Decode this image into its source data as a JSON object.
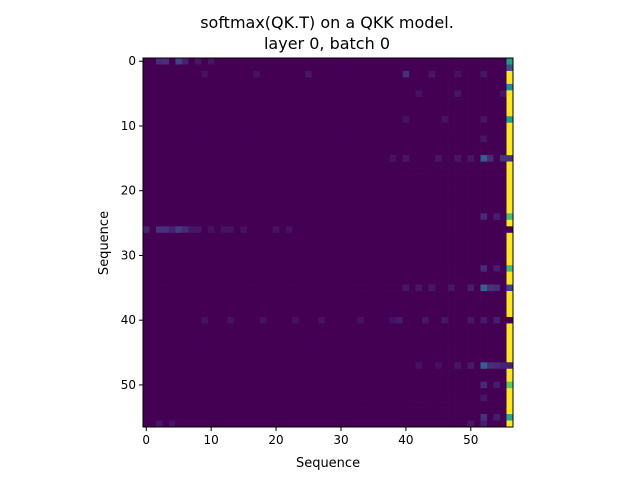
{
  "chart_data": {
    "type": "heatmap",
    "title_lines": [
      "softmax(QK.T) on a QKK model.",
      "layer 0, batch 0"
    ],
    "xlabel": "Sequence",
    "ylabel": "Sequence",
    "n_rows": 57,
    "n_cols": 57,
    "xlim": [
      -0.5,
      56.5
    ],
    "ylim": [
      56.5,
      -0.5
    ],
    "x_ticks": [
      0,
      10,
      20,
      30,
      40,
      50
    ],
    "y_ticks": [
      0,
      10,
      20,
      30,
      40,
      50
    ],
    "colormap": "viridis",
    "value_range": [
      0,
      1
    ],
    "background_value": 0.0,
    "dominant_column": {
      "col": 56,
      "value": 1.0,
      "low_rows": [
        {
          "row": 0,
          "value": 0.55
        },
        {
          "row": 1,
          "value": 0.25
        },
        {
          "row": 4,
          "value": 0.5
        },
        {
          "row": 9,
          "value": 0.55
        },
        {
          "row": 15,
          "value": 0.15
        },
        {
          "row": 24,
          "value": 0.7
        },
        {
          "row": 26,
          "value": 0.0
        },
        {
          "row": 32,
          "value": 0.7
        },
        {
          "row": 35,
          "value": 0.2
        },
        {
          "row": 40,
          "value": 0.0
        },
        {
          "row": 47,
          "value": 0.1
        },
        {
          "row": 50,
          "value": 0.75
        },
        {
          "row": 55,
          "value": 0.6
        }
      ]
    },
    "notable_cells": [
      {
        "row": 0,
        "col": 2,
        "value": 0.12
      },
      {
        "row": 0,
        "col": 3,
        "value": 0.14
      },
      {
        "row": 0,
        "col": 5,
        "value": 0.2
      },
      {
        "row": 0,
        "col": 6,
        "value": 0.1
      },
      {
        "row": 0,
        "col": 8,
        "value": 0.06
      },
      {
        "row": 0,
        "col": 10,
        "value": 0.06
      },
      {
        "row": 2,
        "col": 9,
        "value": 0.05
      },
      {
        "row": 2,
        "col": 17,
        "value": 0.05
      },
      {
        "row": 2,
        "col": 25,
        "value": 0.06
      },
      {
        "row": 2,
        "col": 40,
        "value": 0.14
      },
      {
        "row": 2,
        "col": 44,
        "value": 0.06
      },
      {
        "row": 2,
        "col": 48,
        "value": 0.05
      },
      {
        "row": 2,
        "col": 52,
        "value": 0.06
      },
      {
        "row": 5,
        "col": 42,
        "value": 0.05
      },
      {
        "row": 5,
        "col": 48,
        "value": 0.06
      },
      {
        "row": 5,
        "col": 55,
        "value": 0.06
      },
      {
        "row": 9,
        "col": 40,
        "value": 0.05
      },
      {
        "row": 9,
        "col": 46,
        "value": 0.05
      },
      {
        "row": 9,
        "col": 52,
        "value": 0.06
      },
      {
        "row": 12,
        "col": 52,
        "value": 0.06
      },
      {
        "row": 15,
        "col": 38,
        "value": 0.05
      },
      {
        "row": 15,
        "col": 40,
        "value": 0.06
      },
      {
        "row": 15,
        "col": 45,
        "value": 0.06
      },
      {
        "row": 15,
        "col": 48,
        "value": 0.06
      },
      {
        "row": 15,
        "col": 50,
        "value": 0.06
      },
      {
        "row": 15,
        "col": 52,
        "value": 0.3
      },
      {
        "row": 15,
        "col": 53,
        "value": 0.12
      },
      {
        "row": 15,
        "col": 55,
        "value": 0.15
      },
      {
        "row": 24,
        "col": 52,
        "value": 0.12
      },
      {
        "row": 24,
        "col": 54,
        "value": 0.08
      },
      {
        "row": 26,
        "col": 0,
        "value": 0.1
      },
      {
        "row": 26,
        "col": 2,
        "value": 0.14
      },
      {
        "row": 26,
        "col": 3,
        "value": 0.14
      },
      {
        "row": 26,
        "col": 4,
        "value": 0.1
      },
      {
        "row": 26,
        "col": 5,
        "value": 0.18
      },
      {
        "row": 26,
        "col": 6,
        "value": 0.12
      },
      {
        "row": 26,
        "col": 7,
        "value": 0.06
      },
      {
        "row": 26,
        "col": 8,
        "value": 0.06
      },
      {
        "row": 26,
        "col": 10,
        "value": 0.05
      },
      {
        "row": 26,
        "col": 12,
        "value": 0.05
      },
      {
        "row": 26,
        "col": 13,
        "value": 0.05
      },
      {
        "row": 26,
        "col": 15,
        "value": 0.05
      },
      {
        "row": 26,
        "col": 20,
        "value": 0.05
      },
      {
        "row": 26,
        "col": 22,
        "value": 0.05
      },
      {
        "row": 32,
        "col": 52,
        "value": 0.12
      },
      {
        "row": 32,
        "col": 54,
        "value": 0.08
      },
      {
        "row": 35,
        "col": 40,
        "value": 0.06
      },
      {
        "row": 35,
        "col": 42,
        "value": 0.06
      },
      {
        "row": 35,
        "col": 44,
        "value": 0.06
      },
      {
        "row": 35,
        "col": 47,
        "value": 0.06
      },
      {
        "row": 35,
        "col": 50,
        "value": 0.08
      },
      {
        "row": 35,
        "col": 52,
        "value": 0.32
      },
      {
        "row": 35,
        "col": 53,
        "value": 0.15
      },
      {
        "row": 35,
        "col": 54,
        "value": 0.12
      },
      {
        "row": 40,
        "col": 9,
        "value": 0.05
      },
      {
        "row": 40,
        "col": 13,
        "value": 0.05
      },
      {
        "row": 40,
        "col": 18,
        "value": 0.05
      },
      {
        "row": 40,
        "col": 23,
        "value": 0.05
      },
      {
        "row": 40,
        "col": 27,
        "value": 0.05
      },
      {
        "row": 40,
        "col": 33,
        "value": 0.05
      },
      {
        "row": 40,
        "col": 38,
        "value": 0.05
      },
      {
        "row": 40,
        "col": 39,
        "value": 0.07
      },
      {
        "row": 40,
        "col": 43,
        "value": 0.06
      },
      {
        "row": 40,
        "col": 46,
        "value": 0.06
      },
      {
        "row": 40,
        "col": 50,
        "value": 0.06
      },
      {
        "row": 40,
        "col": 52,
        "value": 0.07
      },
      {
        "row": 40,
        "col": 54,
        "value": 0.08
      },
      {
        "row": 47,
        "col": 42,
        "value": 0.05
      },
      {
        "row": 47,
        "col": 45,
        "value": 0.05
      },
      {
        "row": 47,
        "col": 48,
        "value": 0.06
      },
      {
        "row": 47,
        "col": 50,
        "value": 0.07
      },
      {
        "row": 47,
        "col": 52,
        "value": 0.3
      },
      {
        "row": 47,
        "col": 53,
        "value": 0.14
      },
      {
        "row": 47,
        "col": 54,
        "value": 0.12
      },
      {
        "row": 47,
        "col": 55,
        "value": 0.1
      },
      {
        "row": 50,
        "col": 52,
        "value": 0.12
      },
      {
        "row": 50,
        "col": 54,
        "value": 0.08
      },
      {
        "row": 52,
        "col": 52,
        "value": 0.06
      },
      {
        "row": 55,
        "col": 52,
        "value": 0.14
      },
      {
        "row": 55,
        "col": 54,
        "value": 0.08
      },
      {
        "row": 56,
        "col": 2,
        "value": 0.06
      },
      {
        "row": 56,
        "col": 4,
        "value": 0.05
      },
      {
        "row": 56,
        "col": 50,
        "value": 0.06
      },
      {
        "row": 56,
        "col": 52,
        "value": 0.08
      }
    ]
  }
}
